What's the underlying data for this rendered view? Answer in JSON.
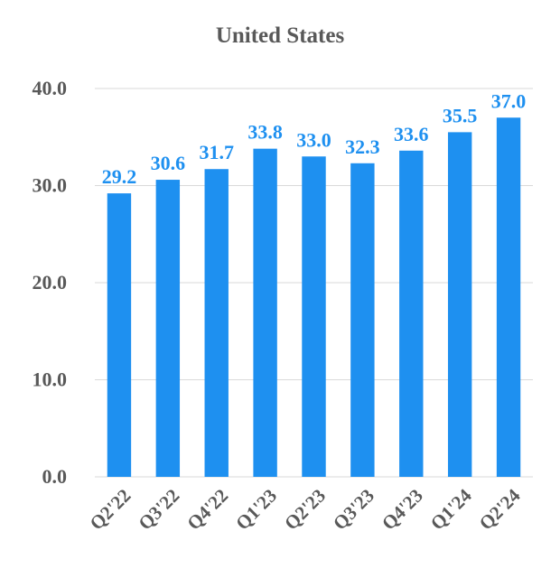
{
  "colors": {
    "bar": "#1E90F0",
    "data_label": "#1E90F0",
    "axis_text": "#595959",
    "gridline": "#D9D9D9",
    "background": "#FFFFFF"
  },
  "chart_data": {
    "type": "bar",
    "title": "United States",
    "xlabel": "",
    "ylabel": "",
    "categories": [
      "Q2'22",
      "Q3'22",
      "Q4'22",
      "Q1'23",
      "Q2'23",
      "Q3'23",
      "Q4'23",
      "Q1'24",
      "Q2'24"
    ],
    "values": [
      29.2,
      30.6,
      31.7,
      33.8,
      33.0,
      32.3,
      33.6,
      35.5,
      37.0
    ],
    "value_labels": [
      "29.2",
      "30.6",
      "31.7",
      "33.8",
      "33.0",
      "32.3",
      "33.6",
      "35.5",
      "37.0"
    ],
    "ylim": [
      0,
      40
    ],
    "yticks": [
      0,
      10,
      20,
      30,
      40
    ],
    "ytick_labels": [
      "0.0",
      "10.0",
      "20.0",
      "30.0",
      "40.0"
    ],
    "grid": true,
    "legend": "none",
    "x_tick_rotation": "rotated"
  }
}
